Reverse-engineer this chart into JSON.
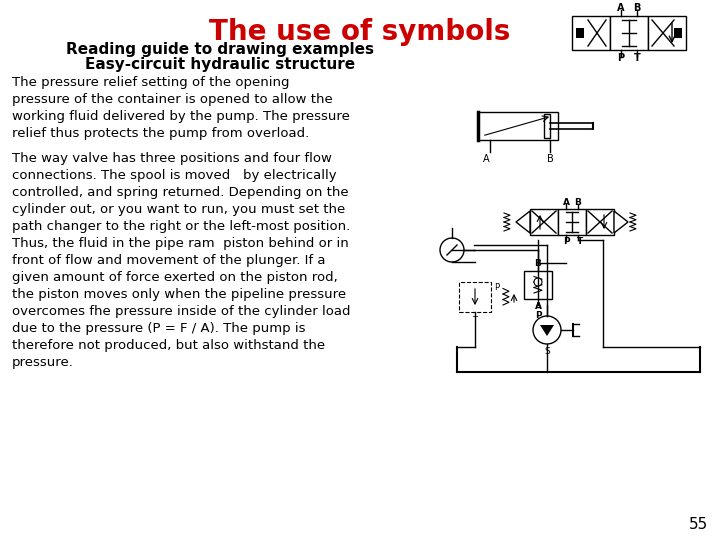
{
  "title": "The use of symbols",
  "title_color": "#CC0000",
  "subtitle_line1": "Reading guide to drawing examples",
  "subtitle_line2": "Easy-circuit hydraulic structure",
  "subtitle_color": "#000000",
  "body_text_1": "The pressure relief setting of the opening\npressure of the container is opened to allow the\nworking fluid delivered by the pump. The pressure\nrelief thus protects the pump from overload.",
  "body_text_2": "The way valve has three positions and four flow\nconnections. The spool is moved   by electrically\ncontrolled, and spring returned. Depending on the\ncylinder out, or you want to run, you must set the\npath changer to the right or the left-most position.\nThus, the fluid in the pipe ram  piston behind or in\nfront of flow and movement of the plunger. If a\ngiven amount of force exerted on the piston rod,\nthe piston moves only when the pipeline pressure\novercomes fhe pressure inside of the cylinder load\ndue to the pressure (P = F / A). The pump is\ntherefore not produced, but also withstand the\npressure.",
  "page_number": "55",
  "background_color": "#FFFFFF",
  "text_color": "#000000",
  "font_size_title": 20,
  "font_size_subtitle": 11,
  "font_size_body": 9.5,
  "font_size_page": 11
}
